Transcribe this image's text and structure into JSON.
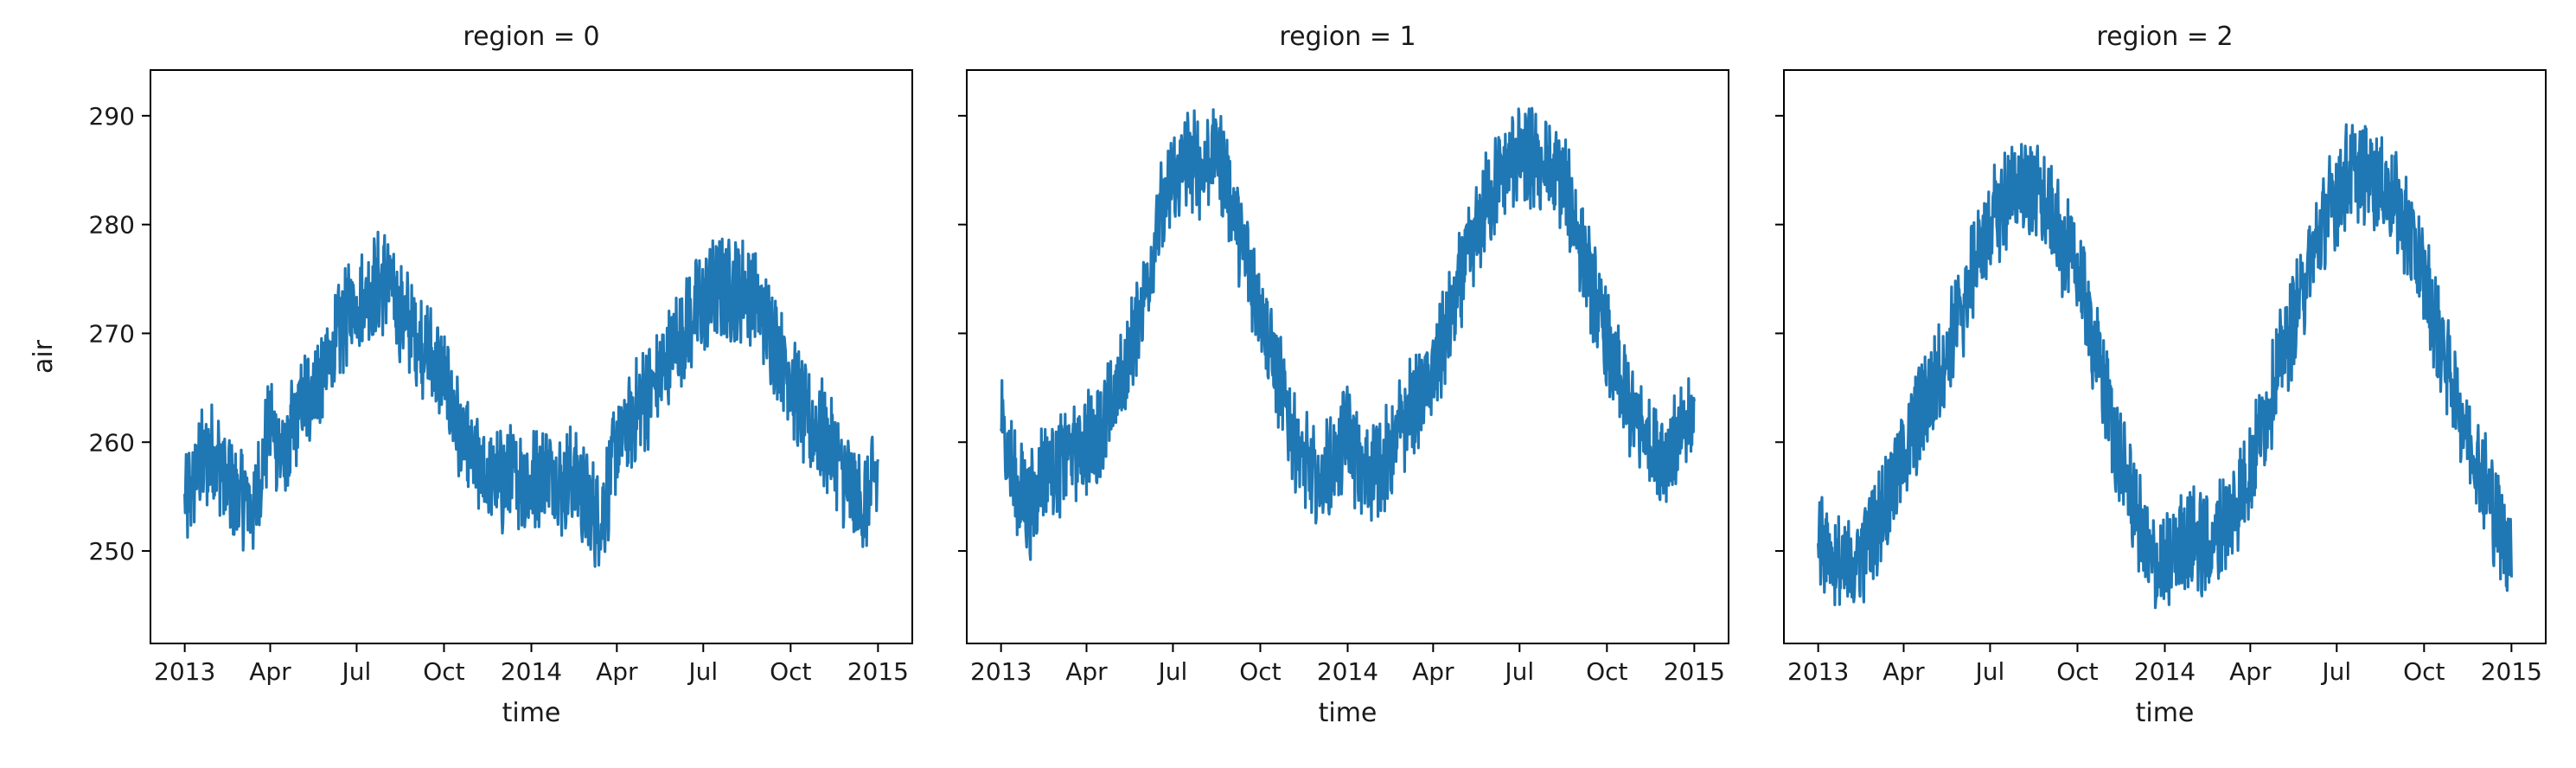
{
  "chart_data": {
    "type": "line",
    "facet_var": "region",
    "x": {
      "label": "time",
      "range": [
        "2013-01-01",
        "2015-01-01"
      ],
      "ticks": [
        {
          "date": "2013-01-01",
          "label": "2013"
        },
        {
          "date": "2013-04-01",
          "label": "Apr"
        },
        {
          "date": "2013-07-01",
          "label": "Jul"
        },
        {
          "date": "2013-10-01",
          "label": "Oct"
        },
        {
          "date": "2014-01-01",
          "label": "2014"
        },
        {
          "date": "2014-04-01",
          "label": "Apr"
        },
        {
          "date": "2014-07-01",
          "label": "Jul"
        },
        {
          "date": "2014-10-01",
          "label": "Oct"
        },
        {
          "date": "2015-01-01",
          "label": "2015"
        }
      ]
    },
    "y": {
      "label": "air",
      "ylim": [
        241.5,
        294.2
      ],
      "ticks": [
        250,
        260,
        270,
        280,
        290
      ]
    },
    "color": "#1f77b4",
    "panels": [
      {
        "title": "region = 0",
        "points": [
          [
            "2013-01-01",
            254
          ],
          [
            "2013-01-16",
            258
          ],
          [
            "2013-02-01",
            259
          ],
          [
            "2013-02-16",
            256
          ],
          [
            "2013-03-01",
            255
          ],
          [
            "2013-03-16",
            254
          ],
          [
            "2013-04-01",
            262
          ],
          [
            "2013-04-16",
            258
          ],
          [
            "2013-05-01",
            263
          ],
          [
            "2013-05-16",
            265
          ],
          [
            "2013-06-01",
            267
          ],
          [
            "2013-06-16",
            271
          ],
          [
            "2013-07-01",
            273
          ],
          [
            "2013-07-16",
            274
          ],
          [
            "2013-08-01",
            275
          ],
          [
            "2013-08-16",
            272
          ],
          [
            "2013-09-01",
            270
          ],
          [
            "2013-09-16",
            268
          ],
          [
            "2013-10-01",
            266
          ],
          [
            "2013-10-16",
            261
          ],
          [
            "2013-11-01",
            258
          ],
          [
            "2013-11-16",
            257
          ],
          [
            "2013-12-01",
            256
          ],
          [
            "2013-12-16",
            257
          ],
          [
            "2014-01-01",
            256
          ],
          [
            "2014-01-16",
            258
          ],
          [
            "2014-02-01",
            256
          ],
          [
            "2014-02-16",
            257
          ],
          [
            "2014-03-01",
            254
          ],
          [
            "2014-03-16",
            253
          ],
          [
            "2014-04-01",
            260
          ],
          [
            "2014-04-16",
            262
          ],
          [
            "2014-05-01",
            264
          ],
          [
            "2014-05-16",
            266
          ],
          [
            "2014-06-01",
            269
          ],
          [
            "2014-06-16",
            271
          ],
          [
            "2014-07-01",
            273
          ],
          [
            "2014-07-16",
            274
          ],
          [
            "2014-08-01",
            274
          ],
          [
            "2014-08-16",
            274
          ],
          [
            "2014-09-01",
            272
          ],
          [
            "2014-09-16",
            269
          ],
          [
            "2014-10-01",
            266
          ],
          [
            "2014-10-16",
            262
          ],
          [
            "2014-11-01",
            261
          ],
          [
            "2014-11-16",
            259
          ],
          [
            "2014-12-01",
            256
          ],
          [
            "2014-12-16",
            254
          ],
          [
            "2015-01-01",
            257
          ]
        ]
      },
      {
        "title": "region = 1",
        "points": [
          [
            "2013-01-01",
            262
          ],
          [
            "2013-01-16",
            256
          ],
          [
            "2013-02-01",
            254
          ],
          [
            "2013-02-16",
            258
          ],
          [
            "2013-03-01",
            258
          ],
          [
            "2013-03-16",
            259
          ],
          [
            "2013-04-01",
            260
          ],
          [
            "2013-04-16",
            261
          ],
          [
            "2013-05-01",
            264
          ],
          [
            "2013-05-16",
            268
          ],
          [
            "2013-06-01",
            274
          ],
          [
            "2013-06-16",
            280
          ],
          [
            "2013-07-01",
            284
          ],
          [
            "2013-07-16",
            286
          ],
          [
            "2013-08-01",
            285
          ],
          [
            "2013-08-16",
            287
          ],
          [
            "2013-09-01",
            282
          ],
          [
            "2013-09-16",
            277
          ],
          [
            "2013-10-01",
            273
          ],
          [
            "2013-10-16",
            267
          ],
          [
            "2013-11-01",
            262
          ],
          [
            "2013-11-16",
            258
          ],
          [
            "2013-12-01",
            256
          ],
          [
            "2013-12-16",
            258
          ],
          [
            "2014-01-01",
            261
          ],
          [
            "2014-01-16",
            257
          ],
          [
            "2014-02-01",
            258
          ],
          [
            "2014-02-16",
            259
          ],
          [
            "2014-03-01",
            262
          ],
          [
            "2014-03-16",
            264
          ],
          [
            "2014-04-01",
            266
          ],
          [
            "2014-04-16",
            270
          ],
          [
            "2014-05-01",
            275
          ],
          [
            "2014-05-16",
            279
          ],
          [
            "2014-06-01",
            283
          ],
          [
            "2014-06-16",
            285
          ],
          [
            "2014-07-01",
            286
          ],
          [
            "2014-07-16",
            286
          ],
          [
            "2014-08-01",
            285
          ],
          [
            "2014-08-16",
            284
          ],
          [
            "2014-09-01",
            279
          ],
          [
            "2014-09-16",
            274
          ],
          [
            "2014-10-01",
            269
          ],
          [
            "2014-10-16",
            265
          ],
          [
            "2014-11-01",
            262
          ],
          [
            "2014-11-16",
            260
          ],
          [
            "2014-12-01",
            259
          ],
          [
            "2014-12-16",
            260
          ],
          [
            "2015-01-01",
            262
          ]
        ]
      },
      {
        "title": "region = 2",
        "points": [
          [
            "2013-01-01",
            252
          ],
          [
            "2013-01-16",
            249
          ],
          [
            "2013-02-01",
            248
          ],
          [
            "2013-02-16",
            250
          ],
          [
            "2013-03-01",
            252
          ],
          [
            "2013-03-16",
            255
          ],
          [
            "2013-04-01",
            259
          ],
          [
            "2013-04-16",
            262
          ],
          [
            "2013-05-01",
            265
          ],
          [
            "2013-05-16",
            268
          ],
          [
            "2013-06-01",
            272
          ],
          [
            "2013-06-16",
            277
          ],
          [
            "2013-07-01",
            280
          ],
          [
            "2013-07-16",
            282
          ],
          [
            "2013-08-01",
            284
          ],
          [
            "2013-08-16",
            283
          ],
          [
            "2013-09-01",
            281
          ],
          [
            "2013-09-16",
            278
          ],
          [
            "2013-10-01",
            276
          ],
          [
            "2013-10-16",
            270
          ],
          [
            "2013-11-01",
            264
          ],
          [
            "2013-11-16",
            258
          ],
          [
            "2013-12-01",
            254
          ],
          [
            "2013-12-16",
            249
          ],
          [
            "2014-01-01",
            248
          ],
          [
            "2014-01-16",
            251
          ],
          [
            "2014-02-01",
            251
          ],
          [
            "2014-02-16",
            250
          ],
          [
            "2014-03-01",
            252
          ],
          [
            "2014-03-16",
            254
          ],
          [
            "2014-04-01",
            258
          ],
          [
            "2014-04-16",
            262
          ],
          [
            "2014-05-01",
            267
          ],
          [
            "2014-05-16",
            271
          ],
          [
            "2014-06-01",
            276
          ],
          [
            "2014-06-16",
            280
          ],
          [
            "2014-07-01",
            283
          ],
          [
            "2014-07-16",
            285
          ],
          [
            "2014-08-01",
            285
          ],
          [
            "2014-08-16",
            284
          ],
          [
            "2014-09-01",
            282
          ],
          [
            "2014-09-16",
            279
          ],
          [
            "2014-10-01",
            275
          ],
          [
            "2014-10-16",
            270
          ],
          [
            "2014-11-01",
            265
          ],
          [
            "2014-11-16",
            261
          ],
          [
            "2014-12-01",
            257
          ],
          [
            "2014-12-16",
            253
          ],
          [
            "2015-01-01",
            250
          ]
        ]
      }
    ]
  }
}
